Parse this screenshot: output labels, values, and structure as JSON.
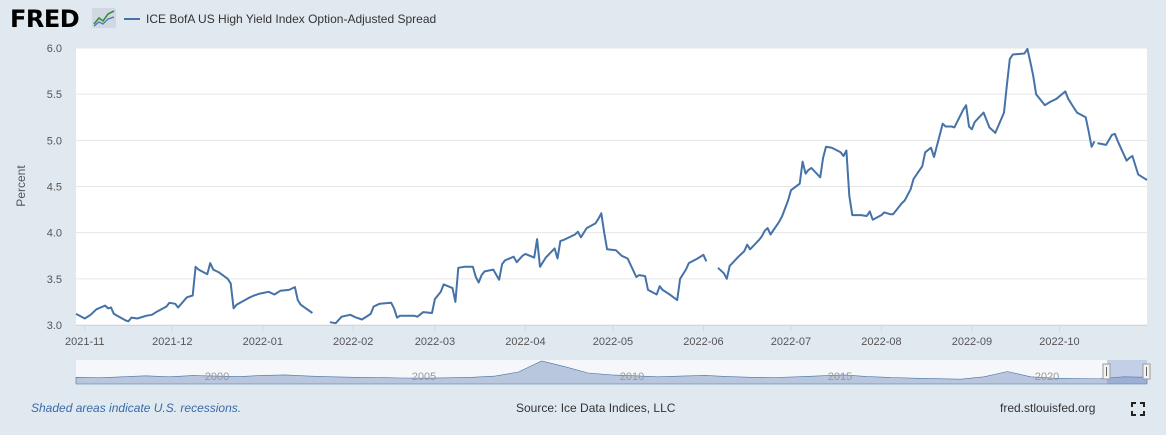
{
  "brand": {
    "name": "FRED"
  },
  "footer": {
    "note": "Shaded areas indicate U.S. recessions.",
    "source": "Source: Ice Data Indices, LLC",
    "site": "fred.stlouisfed.org"
  },
  "icons": {
    "fullscreen": "fullscreen-icon",
    "logo_graph": "line-chart-icon"
  },
  "colors": {
    "series": "#4572a7",
    "background": "#e1e9f0",
    "plot": "#ffffff",
    "navigator_fill": "#b8c7dd"
  },
  "chart_data": {
    "type": "line",
    "title": "",
    "xlabel": "",
    "ylabel": "Percent",
    "ylim": [
      3.0,
      6.0
    ],
    "yticks": [
      3.0,
      3.5,
      4.0,
      4.5,
      5.0,
      5.5,
      6.0
    ],
    "ytick_labels": [
      "3.0",
      "3.5",
      "4.0",
      "4.5",
      "5.0",
      "5.5",
      "6.0"
    ],
    "xlim": [
      "2021-10-29",
      "2022-10-31"
    ],
    "xticks": [
      "2021-11-01",
      "2021-12-01",
      "2022-01-01",
      "2022-02-01",
      "2022-03-01",
      "2022-04-01",
      "2022-05-01",
      "2022-06-01",
      "2022-07-01",
      "2022-08-01",
      "2022-09-01",
      "2022-10-01"
    ],
    "xtick_labels": [
      "2021-11",
      "2021-12",
      "2022-01",
      "2022-02",
      "2022-03",
      "2022-04",
      "2022-05",
      "2022-06",
      "2022-07",
      "2022-08",
      "2022-09",
      "2022-10"
    ],
    "grid": true,
    "legend_position": "top-left",
    "series": [
      {
        "name": "ICE BofA US High Yield Index Option-Adjusted Spread",
        "color": "#4572a7",
        "segments": [
          [
            [
              "2021-10-29",
              3.12
            ],
            [
              "2021-11-01",
              3.07
            ],
            [
              "2021-11-03",
              3.11
            ],
            [
              "2021-11-05",
              3.17
            ],
            [
              "2021-11-08",
              3.21
            ],
            [
              "2021-11-09",
              3.18
            ],
            [
              "2021-11-10",
              3.19
            ],
            [
              "2021-11-11",
              3.12
            ],
            [
              "2021-11-15",
              3.05
            ],
            [
              "2021-11-16",
              3.04
            ],
            [
              "2021-11-17",
              3.08
            ],
            [
              "2021-11-19",
              3.07
            ],
            [
              "2021-11-22",
              3.1
            ],
            [
              "2021-11-24",
              3.11
            ],
            [
              "2021-11-26",
              3.15
            ],
            [
              "2021-11-29",
              3.2
            ],
            [
              "2021-11-30",
              3.24
            ],
            [
              "2021-12-02",
              3.23
            ],
            [
              "2021-12-03",
              3.19
            ],
            [
              "2021-12-06",
              3.3
            ],
            [
              "2021-12-08",
              3.32
            ],
            [
              "2021-12-09",
              3.63
            ],
            [
              "2021-12-10",
              3.6
            ],
            [
              "2021-12-13",
              3.55
            ],
            [
              "2021-12-14",
              3.67
            ],
            [
              "2021-12-15",
              3.6
            ],
            [
              "2021-12-17",
              3.57
            ],
            [
              "2021-12-20",
              3.5
            ],
            [
              "2021-12-21",
              3.45
            ],
            [
              "2021-12-22",
              3.18
            ],
            [
              "2021-12-23",
              3.22
            ],
            [
              "2021-12-27",
              3.29
            ],
            [
              "2021-12-29",
              3.32
            ],
            [
              "2021-12-31",
              3.34
            ],
            [
              "2022-01-03",
              3.36
            ],
            [
              "2022-01-05",
              3.33
            ],
            [
              "2022-01-07",
              3.37
            ],
            [
              "2022-01-10",
              3.38
            ],
            [
              "2022-01-12",
              3.41
            ],
            [
              "2022-01-13",
              3.27
            ],
            [
              "2022-01-14",
              3.22
            ],
            [
              "2022-01-18",
              3.13
            ]
          ],
          [
            [
              "2022-01-24",
              3.03
            ],
            [
              "2022-01-26",
              3.02
            ],
            [
              "2022-01-28",
              3.09
            ],
            [
              "2022-01-31",
              3.11
            ],
            [
              "2022-02-02",
              3.08
            ],
            [
              "2022-02-04",
              3.06
            ],
            [
              "2022-02-07",
              3.12
            ],
            [
              "2022-02-08",
              3.2
            ],
            [
              "2022-02-10",
              3.23
            ],
            [
              "2022-02-14",
              3.24
            ],
            [
              "2022-02-15",
              3.18
            ],
            [
              "2022-02-16",
              3.08
            ],
            [
              "2022-02-17",
              3.1
            ],
            [
              "2022-02-22",
              3.1
            ],
            [
              "2022-02-23",
              3.09
            ],
            [
              "2022-02-25",
              3.14
            ],
            [
              "2022-02-28",
              3.13
            ],
            [
              "2022-03-01",
              3.28
            ],
            [
              "2022-03-03",
              3.36
            ],
            [
              "2022-03-04",
              3.44
            ],
            [
              "2022-03-07",
              3.4
            ],
            [
              "2022-03-08",
              3.25
            ],
            [
              "2022-03-09",
              3.62
            ],
            [
              "2022-03-11",
              3.63
            ],
            [
              "2022-03-14",
              3.63
            ],
            [
              "2022-03-15",
              3.52
            ],
            [
              "2022-03-16",
              3.46
            ],
            [
              "2022-03-17",
              3.54
            ],
            [
              "2022-03-18",
              3.58
            ],
            [
              "2022-03-21",
              3.6
            ],
            [
              "2022-03-23",
              3.49
            ],
            [
              "2022-03-24",
              3.66
            ],
            [
              "2022-03-25",
              3.7
            ],
            [
              "2022-03-28",
              3.74
            ],
            [
              "2022-03-29",
              3.68
            ],
            [
              "2022-03-31",
              3.75
            ],
            [
              "2022-04-01",
              3.77
            ],
            [
              "2022-04-04",
              3.73
            ],
            [
              "2022-04-05",
              3.93
            ],
            [
              "2022-04-06",
              3.63
            ],
            [
              "2022-04-07",
              3.68
            ],
            [
              "2022-04-08",
              3.73
            ],
            [
              "2022-04-11",
              3.83
            ],
            [
              "2022-04-12",
              3.72
            ],
            [
              "2022-04-13",
              3.91
            ],
            [
              "2022-04-14",
              3.92
            ],
            [
              "2022-04-18",
              3.98
            ],
            [
              "2022-04-19",
              4.01
            ],
            [
              "2022-04-20",
              3.95
            ],
            [
              "2022-04-22",
              4.05
            ],
            [
              "2022-04-25",
              4.1
            ],
            [
              "2022-04-26",
              4.15
            ],
            [
              "2022-04-27",
              4.21
            ],
            [
              "2022-04-28",
              4.0
            ],
            [
              "2022-04-29",
              3.82
            ],
            [
              "2022-05-02",
              3.81
            ],
            [
              "2022-05-04",
              3.75
            ],
            [
              "2022-05-06",
              3.72
            ],
            [
              "2022-05-09",
              3.52
            ],
            [
              "2022-05-10",
              3.54
            ],
            [
              "2022-05-12",
              3.53
            ],
            [
              "2022-05-13",
              3.38
            ],
            [
              "2022-05-16",
              3.33
            ],
            [
              "2022-05-17",
              3.42
            ],
            [
              "2022-05-18",
              3.38
            ],
            [
              "2022-05-20",
              3.34
            ],
            [
              "2022-05-23",
              3.27
            ],
            [
              "2022-05-24",
              3.5
            ],
            [
              "2022-05-26",
              3.6
            ],
            [
              "2022-05-27",
              3.67
            ],
            [
              "2022-05-30",
              3.72
            ],
            [
              "2022-06-01",
              3.76
            ],
            [
              "2022-06-02",
              3.69
            ]
          ],
          [
            [
              "2022-06-06",
              3.62
            ],
            [
              "2022-06-08",
              3.56
            ],
            [
              "2022-06-09",
              3.5
            ],
            [
              "2022-06-10",
              3.64
            ],
            [
              "2022-06-13",
              3.74
            ],
            [
              "2022-06-15",
              3.8
            ],
            [
              "2022-06-16",
              3.87
            ],
            [
              "2022-06-17",
              3.82
            ],
            [
              "2022-06-20",
              3.92
            ],
            [
              "2022-06-21",
              3.96
            ],
            [
              "2022-06-22",
              4.02
            ],
            [
              "2022-06-23",
              4.05
            ],
            [
              "2022-06-24",
              3.98
            ],
            [
              "2022-06-27",
              4.12
            ],
            [
              "2022-06-28",
              4.18
            ],
            [
              "2022-06-30",
              4.35
            ],
            [
              "2022-07-01",
              4.46
            ],
            [
              "2022-07-04",
              4.53
            ],
            [
              "2022-07-05",
              4.77
            ],
            [
              "2022-07-06",
              4.64
            ],
            [
              "2022-07-07",
              4.68
            ],
            [
              "2022-07-08",
              4.7
            ],
            [
              "2022-07-11",
              4.6
            ],
            [
              "2022-07-12",
              4.81
            ],
            [
              "2022-07-13",
              4.93
            ],
            [
              "2022-07-15",
              4.92
            ],
            [
              "2022-07-18",
              4.87
            ],
            [
              "2022-07-19",
              4.83
            ],
            [
              "2022-07-20",
              4.89
            ],
            [
              "2022-07-21",
              4.4
            ],
            [
              "2022-07-22",
              4.19
            ],
            [
              "2022-07-25",
              4.19
            ],
            [
              "2022-07-27",
              4.18
            ],
            [
              "2022-07-28",
              4.23
            ],
            [
              "2022-07-29",
              4.14
            ],
            [
              "2022-08-01",
              4.19
            ],
            [
              "2022-08-02",
              4.22
            ],
            [
              "2022-08-04",
              4.2
            ],
            [
              "2022-08-05",
              4.2
            ],
            [
              "2022-08-08",
              4.32
            ],
            [
              "2022-08-09",
              4.35
            ],
            [
              "2022-08-11",
              4.47
            ],
            [
              "2022-08-12",
              4.58
            ],
            [
              "2022-08-15",
              4.72
            ],
            [
              "2022-08-16",
              4.87
            ],
            [
              "2022-08-18",
              4.92
            ],
            [
              "2022-08-19",
              4.82
            ],
            [
              "2022-08-22",
              5.18
            ],
            [
              "2022-08-23",
              5.15
            ],
            [
              "2022-08-25",
              5.15
            ],
            [
              "2022-08-26",
              5.14
            ],
            [
              "2022-08-29",
              5.33
            ],
            [
              "2022-08-30",
              5.38
            ],
            [
              "2022-08-31",
              5.15
            ],
            [
              "2022-09-01",
              5.12
            ],
            [
              "2022-09-02",
              5.2
            ],
            [
              "2022-09-05",
              5.3
            ],
            [
              "2022-09-06",
              5.22
            ],
            [
              "2022-09-07",
              5.14
            ],
            [
              "2022-09-09",
              5.08
            ],
            [
              "2022-09-12",
              5.3
            ],
            [
              "2022-09-13",
              5.6
            ],
            [
              "2022-09-14",
              5.88
            ],
            [
              "2022-09-15",
              5.93
            ],
            [
              "2022-09-19",
              5.94
            ],
            [
              "2022-09-20",
              5.99
            ],
            [
              "2022-09-21",
              5.85
            ],
            [
              "2022-09-22",
              5.7
            ],
            [
              "2022-09-23",
              5.5
            ],
            [
              "2022-09-26",
              5.38
            ],
            [
              "2022-09-27",
              5.4
            ],
            [
              "2022-09-28",
              5.42
            ],
            [
              "2022-09-30",
              5.45
            ],
            [
              "2022-10-03",
              5.53
            ],
            [
              "2022-10-04",
              5.45
            ],
            [
              "2022-10-05",
              5.4
            ],
            [
              "2022-10-06",
              5.35
            ],
            [
              "2022-10-07",
              5.3
            ],
            [
              "2022-10-10",
              5.25
            ],
            [
              "2022-10-11",
              5.1
            ],
            [
              "2022-10-12",
              4.93
            ],
            [
              "2022-10-13",
              4.99
            ]
          ],
          [
            [
              "2022-10-14",
              4.97
            ],
            [
              "2022-10-17",
              4.95
            ],
            [
              "2022-10-19",
              5.06
            ],
            [
              "2022-10-20",
              5.07
            ],
            [
              "2022-10-21",
              4.99
            ],
            [
              "2022-10-24",
              4.78
            ],
            [
              "2022-10-25",
              4.81
            ],
            [
              "2022-10-26",
              4.83
            ],
            [
              "2022-10-28",
              4.63
            ],
            [
              "2022-10-31",
              4.57
            ]
          ]
        ]
      }
    ],
    "navigator": {
      "tick_labels": [
        "2000",
        "2005",
        "2010",
        "2015",
        "2020"
      ]
    }
  }
}
